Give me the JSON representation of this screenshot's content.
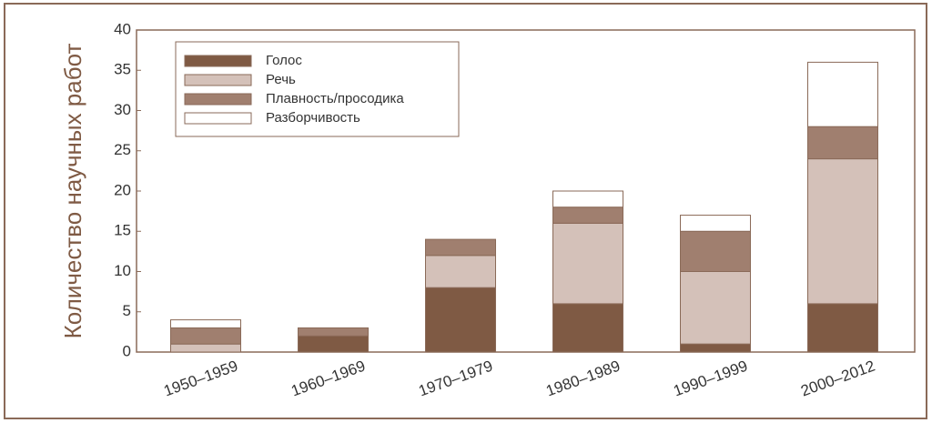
{
  "chart_data": {
    "type": "stacked-bar",
    "y_label": "Количество научных работ",
    "categories": [
      "1950–1959",
      "1960–1969",
      "1970–1979",
      "1980–1989",
      "1990–1999",
      "2000–2012"
    ],
    "series": [
      {
        "name": "Голос",
        "color": "#7f5a44",
        "values": [
          0,
          2,
          8,
          6,
          1,
          6
        ]
      },
      {
        "name": "Речь",
        "color": "#d4c1b9",
        "values": [
          1,
          0,
          4,
          10,
          9,
          18
        ]
      },
      {
        "name": "Плавность/просодика",
        "color": "#a07f6f",
        "values": [
          2,
          1,
          2,
          2,
          5,
          4
        ]
      },
      {
        "name": "Разборчивость",
        "color": "#ffffff",
        "values": [
          1,
          0,
          0,
          2,
          2,
          8
        ]
      }
    ],
    "ylim": [
      0,
      40
    ],
    "yticks": [
      0,
      5,
      10,
      15,
      20,
      25,
      30,
      35,
      40
    ],
    "legend": "upper left",
    "grid": false
  }
}
